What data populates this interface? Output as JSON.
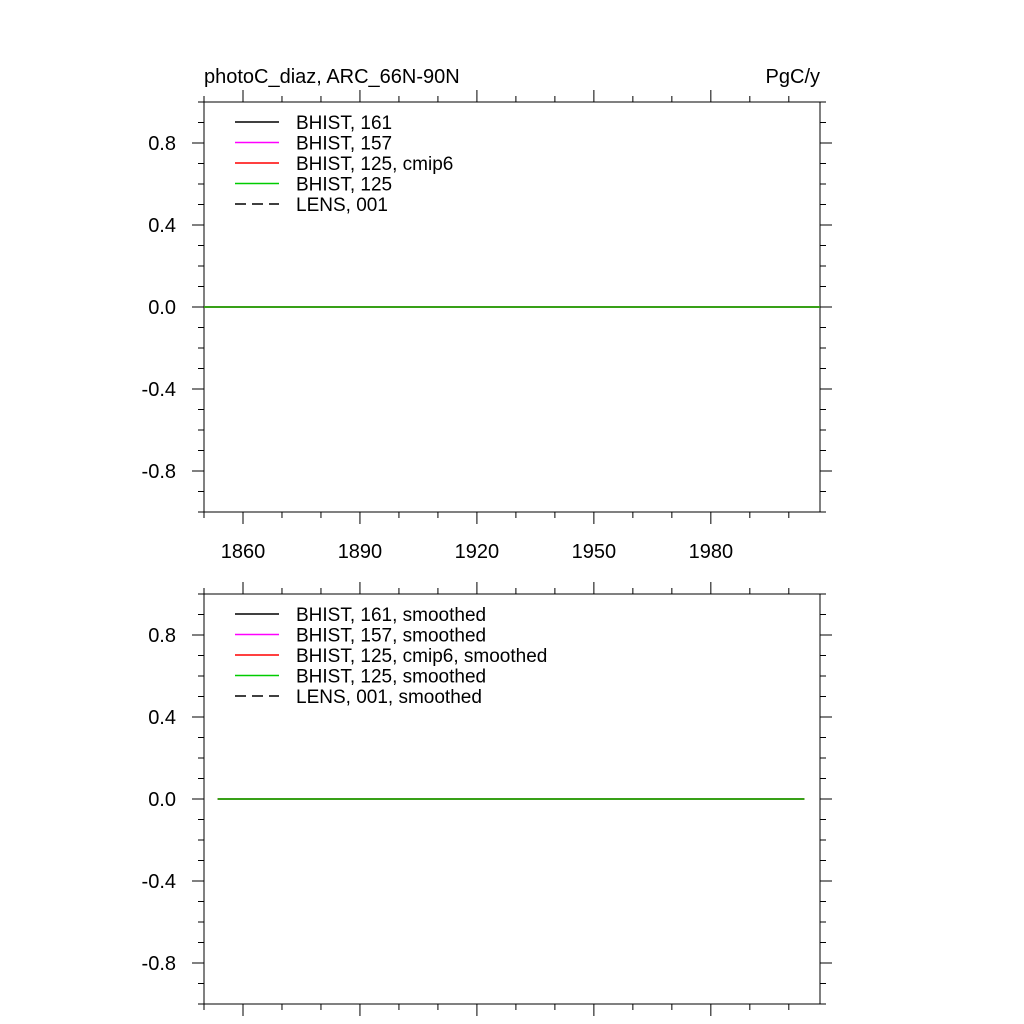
{
  "header": {
    "title_left": "photoC_diaz, ARC_66N-90N",
    "title_right": "PgC/y"
  },
  "colors": {
    "black": "#000000",
    "magenta": "#ff00ff",
    "red": "#ff0000",
    "green": "#00cc00"
  },
  "chart_data": [
    {
      "type": "line",
      "title": "photoC_diaz, ARC_66N-90N",
      "units": "PgC/y",
      "xlim": [
        1850,
        2008
      ],
      "ylim": [
        -1.0,
        1.0
      ],
      "x_ticks": [
        1860,
        1890,
        1920,
        1950,
        1980
      ],
      "x_tick_labels": [
        "1860",
        "1890",
        "1920",
        "1950",
        "1980"
      ],
      "y_ticks": [
        0.8,
        0.4,
        0.0,
        -0.4,
        -0.8
      ],
      "y_tick_labels": [
        "0.8",
        "0.4",
        "0.0",
        "-0.4",
        "-0.8"
      ],
      "legend_position": "top-left",
      "series": [
        {
          "name": "BHIST, 161",
          "color": "#000000",
          "dash": "solid",
          "x": [
            1850,
            2008
          ],
          "y": [
            0.0,
            0.0
          ]
        },
        {
          "name": "BHIST, 157",
          "color": "#ff00ff",
          "dash": "solid",
          "x": [
            1850,
            2008
          ],
          "y": [
            0.0,
            0.0
          ]
        },
        {
          "name": "BHIST, 125, cmip6",
          "color": "#ff0000",
          "dash": "solid",
          "x": [
            1850,
            2008
          ],
          "y": [
            0.0,
            0.0
          ]
        },
        {
          "name": "BHIST, 125",
          "color": "#00cc00",
          "dash": "solid",
          "x": [
            1850,
            2008
          ],
          "y": [
            0.0,
            0.0
          ]
        },
        {
          "name": "LENS, 001",
          "color": "#000000",
          "dash": "dashed",
          "x": [],
          "y": []
        }
      ]
    },
    {
      "type": "line",
      "xlim": [
        1850,
        2008
      ],
      "ylim": [
        -1.0,
        1.0
      ],
      "x_ticks": [
        1860,
        1890,
        1920,
        1950,
        1980
      ],
      "x_tick_labels": [],
      "y_ticks": [
        0.8,
        0.4,
        0.0,
        -0.4,
        -0.8
      ],
      "y_tick_labels": [
        "0.8",
        "0.4",
        "0.0",
        "-0.4",
        "-0.8"
      ],
      "legend_position": "top-left",
      "series": [
        {
          "name": "BHIST, 161, smoothed",
          "color": "#000000",
          "dash": "solid",
          "x": [
            1853.5,
            2004
          ],
          "y": [
            0.0,
            0.0
          ]
        },
        {
          "name": "BHIST, 157, smoothed",
          "color": "#ff00ff",
          "dash": "solid",
          "x": [
            1853.5,
            2004
          ],
          "y": [
            0.0,
            0.0
          ]
        },
        {
          "name": "BHIST, 125, cmip6, smoothed",
          "color": "#ff0000",
          "dash": "solid",
          "x": [
            1853.5,
            2004
          ],
          "y": [
            0.0,
            0.0
          ]
        },
        {
          "name": "BHIST, 125, smoothed",
          "color": "#00cc00",
          "dash": "solid",
          "x": [
            1853.5,
            2004
          ],
          "y": [
            0.0,
            0.0
          ]
        },
        {
          "name": "LENS, 001, smoothed",
          "color": "#000000",
          "dash": "dashed",
          "x": [],
          "y": []
        }
      ]
    }
  ]
}
